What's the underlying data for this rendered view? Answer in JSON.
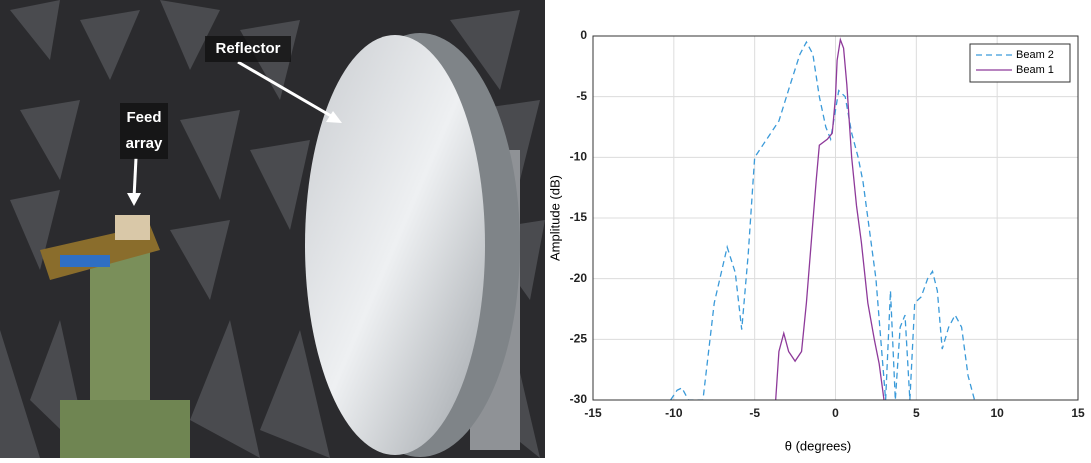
{
  "photo": {
    "annotations": [
      "Reflector",
      "Feed",
      "array"
    ]
  },
  "chart_data": {
    "type": "line",
    "x_label": "θ (degrees)",
    "y_label": "Amplitude (dB)",
    "xlim": [
      -15,
      15
    ],
    "xticks": [
      -15,
      -10,
      -5,
      0,
      5,
      10,
      15
    ],
    "ylim": [
      -30,
      0
    ],
    "yticks": [
      0,
      -5,
      -10,
      -15,
      -20,
      -25,
      -30
    ],
    "grid": true,
    "legend": "upper right",
    "series": [
      {
        "name": "Beam 2",
        "color": "#3a9ad9",
        "linestyle": "dashed",
        "x": [
          -10.2,
          -9.8,
          -9.5,
          -9.1,
          -8.2,
          -7.5,
          -6.7,
          -6.2,
          -5.8,
          -5.4,
          -5.0,
          -4.5,
          -3.5,
          -2.8,
          -2.2,
          -1.8,
          -1.4,
          -1.0,
          -0.6,
          -0.3,
          0.2,
          0.6,
          1.0,
          1.4,
          1.7,
          2.1,
          2.5,
          2.8,
          3.1,
          3.4,
          3.7,
          4.0,
          4.3,
          4.6,
          4.9,
          5.3,
          5.7,
          6.0,
          6.3,
          6.6,
          7.0,
          7.4,
          7.8,
          8.2,
          8.6
        ],
        "values": [
          -30,
          -29.2,
          -29,
          -30,
          -30,
          -22,
          -17.4,
          -19.5,
          -24.2,
          -18,
          -10,
          -9,
          -7,
          -4,
          -1.5,
          -0.5,
          -1.5,
          -5,
          -7.5,
          -8.5,
          -4.5,
          -5,
          -8,
          -10,
          -12,
          -16,
          -20,
          -25,
          -30,
          -21,
          -30,
          -24,
          -23,
          -30,
          -22,
          -21.5,
          -20,
          -19.4,
          -21,
          -25.8,
          -24,
          -23,
          -24,
          -28,
          -30
        ]
      },
      {
        "name": "Beam 1",
        "color": "#8e3a9a",
        "linestyle": "solid",
        "x": [
          -3.7,
          -3.5,
          -3.2,
          -2.9,
          -2.5,
          -2.1,
          -1.8,
          -1.5,
          -1.2,
          -1.0,
          -0.5,
          -0.2,
          0.0,
          0.1,
          0.3,
          0.5,
          0.7,
          1.0,
          1.3,
          1.6,
          2.0,
          2.4,
          2.7,
          3.0
        ],
        "values": [
          -30,
          -26,
          -24.5,
          -26,
          -26.8,
          -26,
          -22,
          -17,
          -12,
          -9,
          -8.5,
          -8,
          -5,
          -2,
          -0.3,
          -1,
          -4,
          -10,
          -14,
          -17,
          -22,
          -25,
          -27,
          -30
        ]
      }
    ]
  }
}
